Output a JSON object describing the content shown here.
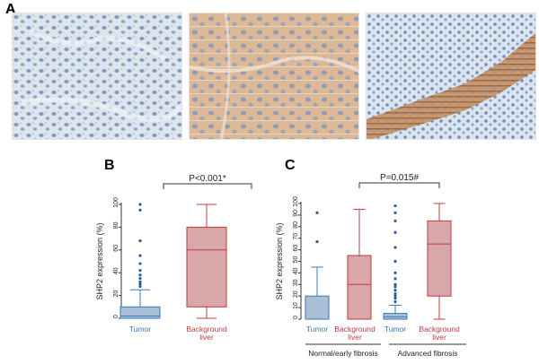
{
  "panel_labels": {
    "a": "A",
    "b": "B",
    "c": "C"
  },
  "chart_data": [
    {
      "type": "box",
      "panel": "B",
      "ylabel": "SHP2 expression (%)",
      "ylim": [
        0,
        100
      ],
      "yticks": [
        0,
        20,
        40,
        60,
        80,
        100
      ],
      "significance": "P<0.001*",
      "groups": [
        {
          "label": "Tumor",
          "color": "#3a79b8",
          "fill": "#a9bfd6",
          "min": 0,
          "q1": 0,
          "median": 2,
          "q3": 10,
          "whisker_high": 25,
          "outliers": [
            28,
            30,
            32,
            35,
            38,
            42,
            48,
            55,
            68,
            95,
            100
          ]
        },
        {
          "label": "Background\nliver",
          "color": "#c0393f",
          "fill": "#d8a7aa",
          "min": 0,
          "q1": 10,
          "median": 60,
          "q3": 80,
          "whisker_high": 100,
          "outliers": []
        }
      ]
    },
    {
      "type": "box",
      "panel": "C",
      "ylabel": "SHP2 expression (%)",
      "ylim": [
        0,
        100
      ],
      "yticks": [
        0,
        10,
        20,
        30,
        40,
        50,
        60,
        70,
        80,
        90,
        100
      ],
      "significance": "P=0.015#",
      "group_labels": [
        "Normal/early fibrosis",
        "Advanced fibrosis"
      ],
      "groups": [
        {
          "label": "Tumor",
          "color": "#3a79b8",
          "fill": "#a9bfd6",
          "min": 0,
          "q1": 0,
          "median": 0,
          "q3": 20,
          "whisker_high": 45,
          "outliers": [
            67,
            92
          ]
        },
        {
          "label": "Background\nliver",
          "color": "#c0393f",
          "fill": "#d8a7aa",
          "min": 0,
          "q1": 0,
          "median": 30,
          "q3": 55,
          "whisker_high": 95,
          "outliers": []
        },
        {
          "label": "Tumor",
          "color": "#3a79b8",
          "fill": "#a9bfd6",
          "min": 0,
          "q1": 0,
          "median": 2,
          "q3": 5,
          "whisker_high": 12,
          "outliers": [
            15,
            18,
            20,
            22,
            25,
            28,
            30,
            35,
            40,
            50,
            62,
            75,
            85,
            92,
            98
          ]
        },
        {
          "label": "Background\nliver",
          "color": "#c0393f",
          "fill": "#d8a7aa",
          "min": 0,
          "q1": 20,
          "median": 65,
          "q3": 85,
          "whisker_high": 100,
          "outliers": []
        }
      ]
    }
  ]
}
